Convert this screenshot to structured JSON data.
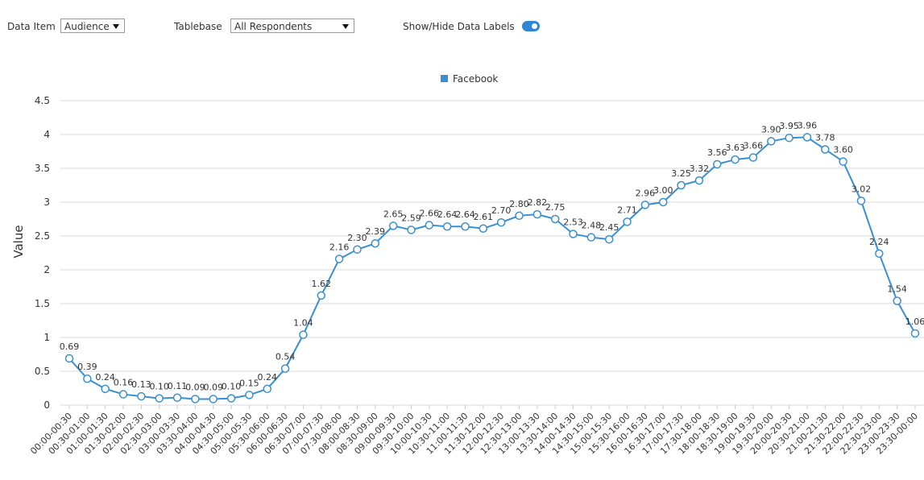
{
  "controls": {
    "data_item": {
      "label": "Data Item",
      "value": "Audience"
    },
    "tablebase": {
      "label": "Tablebase",
      "value": "All Respondents"
    },
    "data_labels_toggle": {
      "label": "Show/Hide Data Labels",
      "on": true
    }
  },
  "chart_data": {
    "type": "line",
    "y_label": "Value",
    "categories": [
      "00:00-00:30",
      "00:30-01:00",
      "01:00-01:30",
      "01:30-02:00",
      "02:00-02:30",
      "02:30-03:00",
      "03:00-03:30",
      "03:30-04:00",
      "04:00-04:30",
      "04:30-05:00",
      "05:00-05:30",
      "05:30-06:00",
      "06:00-06:30",
      "06:30-07:00",
      "07:00-07:30",
      "07:30-08:00",
      "08:00-08:30",
      "08:30-09:00",
      "09:00-09:30",
      "09:30-10:00",
      "10:00-10:30",
      "10:30-11:00",
      "11:00-11:30",
      "11:30-12:00",
      "12:00-12:30",
      "12:30-13:00",
      "13:00-13:30",
      "13:30-14:00",
      "14:00-14:30",
      "14:30-15:00",
      "15:00-15:30",
      "15:30-16:00",
      "16:00-16:30",
      "16:30-17:00",
      "17:00-17:30",
      "17:30-18:00",
      "18:00-18:30",
      "18:30-19:00",
      "19:00-19:30",
      "19:30-20:00",
      "20:00-20:30",
      "20:30-21:00",
      "21:00-21:30",
      "21:30-22:00",
      "22:00-22:30",
      "22:30-23:00",
      "23:00-23:30",
      "23:30-00:00"
    ],
    "series": [
      {
        "name": "Facebook",
        "color": "#3a8fcf",
        "values": [
          0.69,
          0.39,
          0.24,
          0.16,
          0.13,
          0.1,
          0.11,
          0.09,
          0.09,
          0.1,
          0.15,
          0.24,
          0.54,
          1.04,
          1.62,
          2.16,
          2.3,
          2.39,
          2.65,
          2.59,
          2.66,
          2.64,
          2.64,
          2.61,
          2.7,
          2.8,
          2.82,
          2.75,
          2.53,
          2.48,
          2.45,
          2.71,
          2.96,
          3.0,
          3.25,
          3.32,
          3.56,
          3.63,
          3.66,
          3.9,
          3.95,
          3.96,
          3.78,
          3.6,
          3.02,
          2.24,
          1.54,
          1.06
        ],
        "value_labels": [
          "0.69",
          "0.39",
          "0.24",
          "0.16",
          "0.13",
          "0.10",
          "0.11",
          "0.09",
          "0.09",
          "0.10",
          "0.15",
          "0.24",
          "0.54",
          "1.04",
          "1.62",
          "2.16",
          "2.30",
          "2.39",
          "2.65",
          "2.59",
          "2.66",
          "2.64",
          "2.64",
          "2.61",
          "2.70",
          "2.80",
          "2.82",
          "2.75",
          "2.53",
          "2.48",
          "2.45",
          "2.71",
          "2.96",
          "3.00",
          "3.25",
          "3.32",
          "3.56",
          "3.63",
          "3.66",
          "3.90",
          "3.95",
          "3.96",
          "3.78",
          "3.60",
          "3.02",
          "2.24",
          "1.54",
          "1.06"
        ]
      }
    ],
    "ylim": [
      0,
      4.5
    ],
    "yticks": [
      0,
      0.5,
      1,
      1.5,
      2,
      2.5,
      3,
      3.5,
      4,
      4.5
    ],
    "grid": true,
    "legend": "top"
  }
}
